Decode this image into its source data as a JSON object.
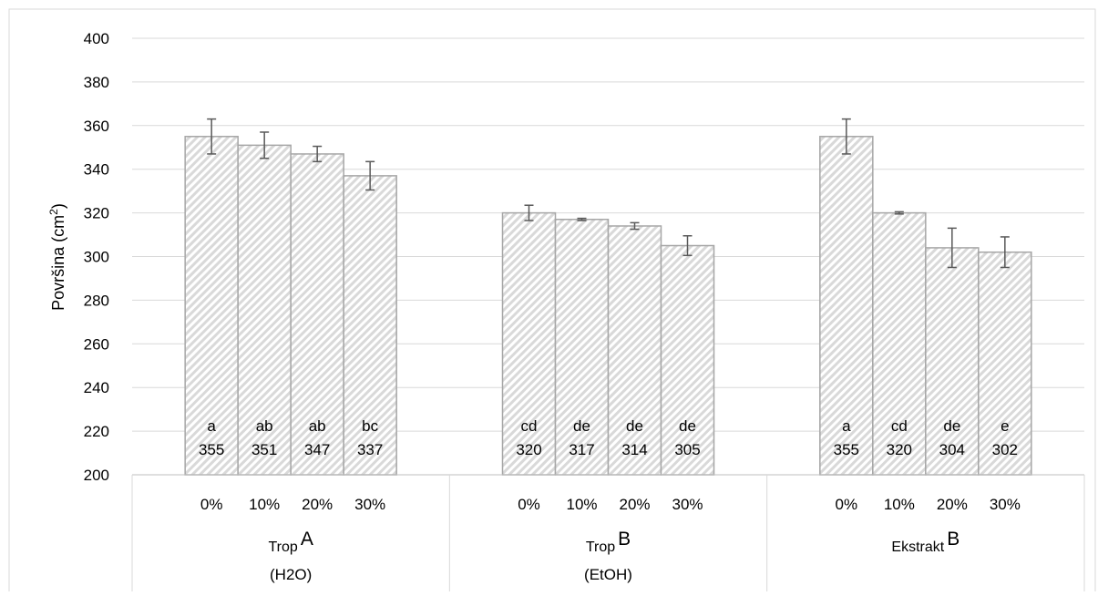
{
  "chart_data": {
    "type": "bar",
    "ylabel": "Površina (cm²)",
    "ylabel_main": "Površina (cm",
    "ylabel_sup": "2",
    "ylabel_close": ")",
    "ylim": [
      200,
      400
    ],
    "yticks": [
      200,
      220,
      240,
      260,
      280,
      300,
      320,
      340,
      360,
      380,
      400
    ],
    "grid": true,
    "bar_fill": "hatched-light-gray",
    "bar_color": "#d9d9d9",
    "bar_border": "#a6a6a6",
    "error_bar_color": "#595959",
    "groups": [
      {
        "label": "Trop",
        "label_sup": "A",
        "sublabel": "(H2O)",
        "categories": [
          "0%",
          "10%",
          "20%",
          "30%"
        ],
        "values": [
          355,
          351,
          347,
          337
        ],
        "errors": [
          8,
          6,
          3.5,
          6.5
        ],
        "letters": [
          "a",
          "ab",
          "ab",
          "bc"
        ],
        "value_labels": [
          "355",
          "351",
          "347",
          "337"
        ]
      },
      {
        "label": "Trop",
        "label_sup": "B",
        "sublabel": "(EtOH)",
        "categories": [
          "0%",
          "10%",
          "20%",
          "30%"
        ],
        "values": [
          320,
          317,
          314,
          305
        ],
        "errors": [
          3.5,
          0.5,
          1.5,
          4.5
        ],
        "letters": [
          "cd",
          "de",
          "de",
          "de"
        ],
        "value_labels": [
          "320",
          "317",
          "314",
          "305"
        ]
      },
      {
        "label": "Ekstrakt",
        "label_sup": "B",
        "sublabel": "",
        "categories": [
          "0%",
          "10%",
          "20%",
          "30%"
        ],
        "values": [
          355,
          320,
          304,
          302
        ],
        "errors": [
          8,
          0.5,
          9,
          7
        ],
        "letters": [
          "a",
          "cd",
          "de",
          "e"
        ],
        "value_labels": [
          "355",
          "320",
          "304",
          "302"
        ]
      }
    ]
  }
}
